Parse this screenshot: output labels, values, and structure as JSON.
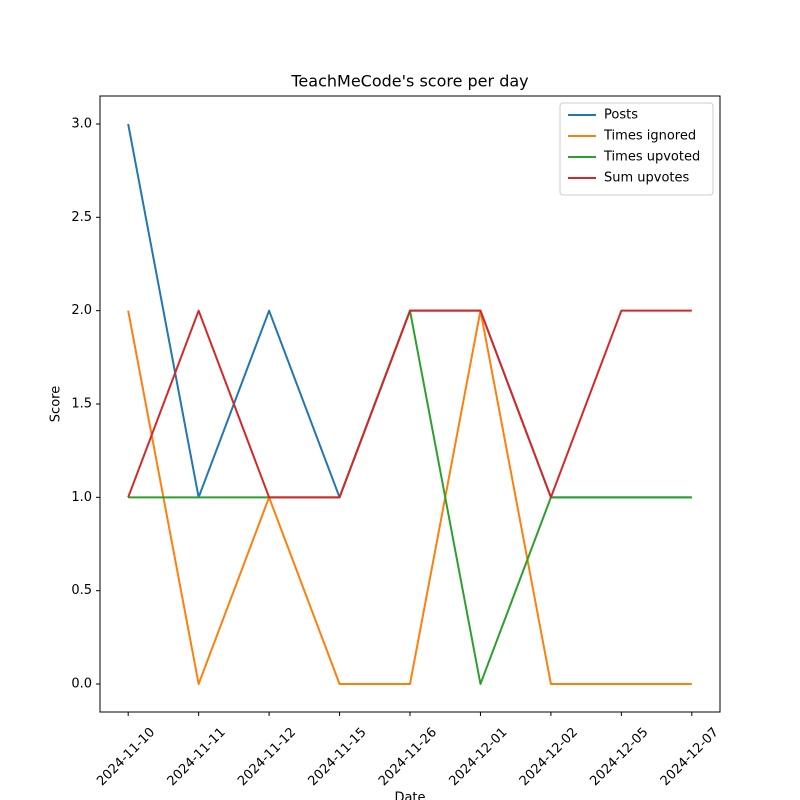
{
  "chart_data": {
    "type": "line",
    "title": "TeachMeCode's score per day",
    "xlabel": "Date",
    "ylabel": "Score",
    "categories": [
      "2024-11-10",
      "2024-11-11",
      "2024-11-12",
      "2024-11-15",
      "2024-11-26",
      "2024-12-01",
      "2024-12-02",
      "2024-12-05",
      "2024-12-07"
    ],
    "series": [
      {
        "name": "Posts",
        "color": "#1f77b4",
        "values": [
          3,
          1,
          2,
          1,
          2,
          2,
          1,
          1,
          1
        ]
      },
      {
        "name": "Times ignored",
        "color": "#ff7f0e",
        "values": [
          2,
          0,
          1,
          0,
          0,
          2,
          0,
          0,
          0
        ]
      },
      {
        "name": "Times upvoted",
        "color": "#2ca02c",
        "values": [
          1,
          1,
          1,
          1,
          2,
          0,
          1,
          1,
          1
        ]
      },
      {
        "name": "Sum upvotes",
        "color": "#d62728",
        "values": [
          1,
          2,
          1,
          1,
          2,
          2,
          1,
          2,
          2
        ]
      }
    ],
    "ylim": [
      -0.15,
      3.15
    ],
    "yticks": [
      {
        "value": 0,
        "label": "0.0"
      },
      {
        "value": 0.5,
        "label": "0.5"
      },
      {
        "value": 1,
        "label": "1.0"
      },
      {
        "value": 1.5,
        "label": "1.5"
      },
      {
        "value": 2,
        "label": "2.0"
      },
      {
        "value": 2.5,
        "label": "2.5"
      },
      {
        "value": 3,
        "label": "3.0"
      }
    ],
    "legend": "upper right",
    "grid": false
  }
}
